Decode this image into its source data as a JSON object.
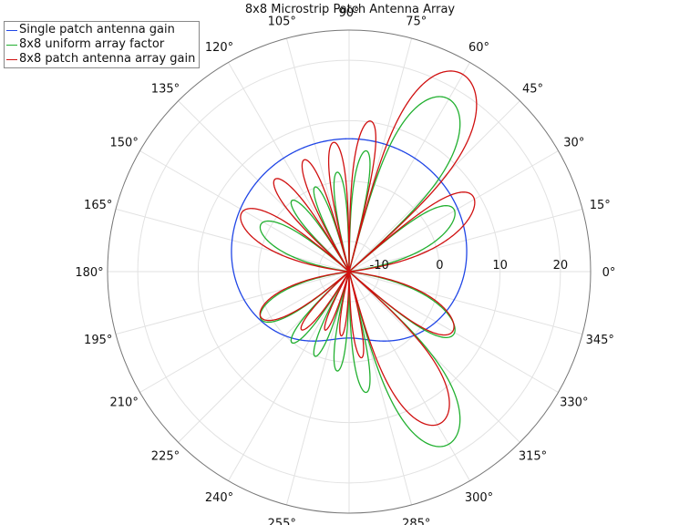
{
  "chart_data": {
    "type": "polar-line",
    "title": "8x8 Microstrip Patch Antenna Array",
    "radial_axis": {
      "unit": "dB",
      "ticks": [
        -10,
        0,
        10,
        20
      ],
      "tick_labels": [
        "-10",
        "0",
        "10",
        "20"
      ],
      "range": [
        -15,
        25
      ]
    },
    "angular_axis": {
      "unit": "deg",
      "ticks": [
        0,
        15,
        30,
        45,
        60,
        75,
        90,
        105,
        120,
        135,
        150,
        165,
        180,
        195,
        210,
        225,
        240,
        255,
        270,
        285,
        300,
        315,
        330,
        345
      ],
      "tick_labels": [
        "0°",
        "15°",
        "30°",
        "45°",
        "60°",
        "75°",
        "90°",
        "105°",
        "120°",
        "135°",
        "150°",
        "165°",
        "180°",
        "195°",
        "210°",
        "225°",
        "240°",
        "255°",
        "270°",
        "285°",
        "300°",
        "315°",
        "330°",
        "345°"
      ]
    },
    "grid": true,
    "legend_position": "top-left",
    "series": [
      {
        "name": "Single patch antenna gain",
        "color": "#2046e6",
        "peak_db": 7,
        "peak_angle": 90
      },
      {
        "name": "8x8 uniform array factor",
        "color": "#22b030",
        "peak_db": 18,
        "peak_angle": 60,
        "mirror_peak_angle": 300
      },
      {
        "name": "8x8 patch antenna array gain",
        "color": "#d01010",
        "peak_db": 23,
        "peak_angle": 60
      }
    ]
  },
  "legend": {
    "items": [
      {
        "label": "Single patch antenna gain",
        "color": "#2046e6"
      },
      {
        "label": "8x8 uniform array factor",
        "color": "#22b030"
      },
      {
        "label": "8x8 patch antenna array gain",
        "color": "#d01010"
      }
    ]
  }
}
